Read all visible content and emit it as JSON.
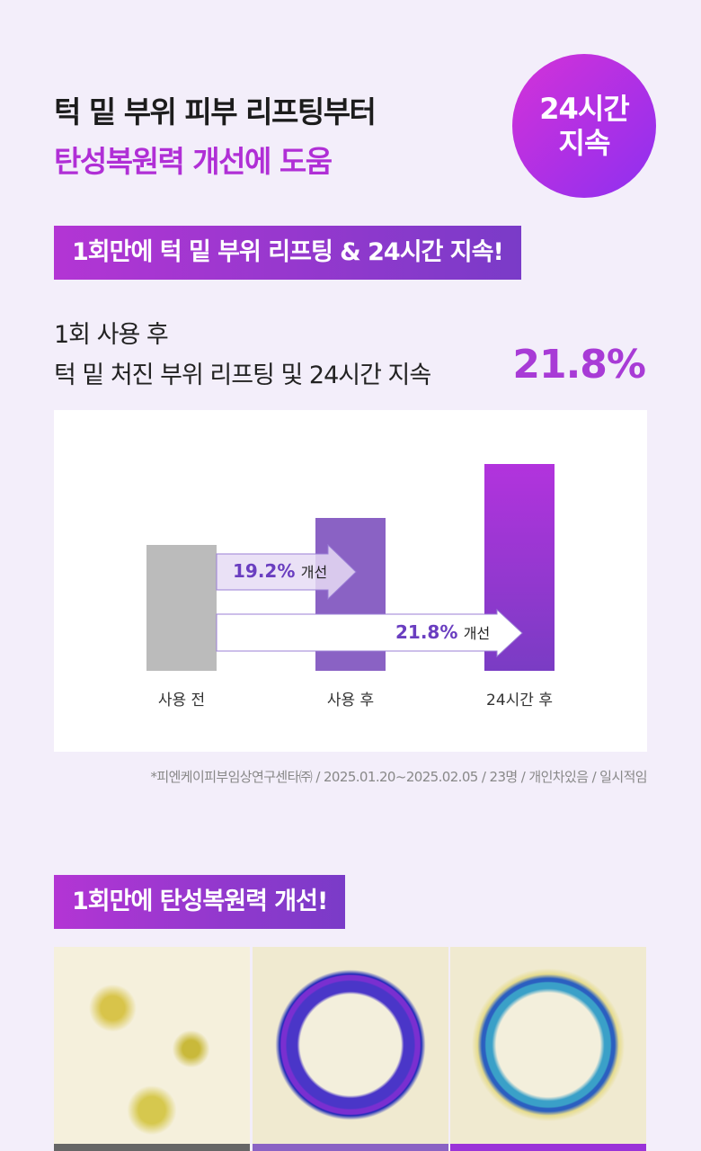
{
  "header": {
    "line1": "턱 밑 부위 피부 리프팅부터",
    "line2": "탄성복원력 개선에 도움",
    "badge_line1": "24시간",
    "badge_line2": "지속"
  },
  "section1": {
    "banner": "1회만에 턱 밑 부위 리프팅 & 24시간 지속!",
    "sub1": "1회 사용 후",
    "sub2": "턱 밑 처진 부위 리프팅 및 24시간 지속",
    "highlight": "21.8%"
  },
  "chart_data": {
    "type": "bar",
    "categories": [
      "사용 전",
      "사용 후",
      "24시간 후"
    ],
    "values": [
      1.0,
      1.214,
      1.643
    ],
    "value_note": "relative bar height, no axis shown",
    "annotations": [
      {
        "value": "19.2%",
        "label": "개선",
        "from": "사용 전",
        "to": "사용 후"
      },
      {
        "value": "21.8%",
        "label": "개선",
        "from": "사용 전",
        "to": "24시간 후"
      }
    ],
    "colors": [
      "#bbbbbb",
      "#8a62c4",
      "#a033d8"
    ]
  },
  "footnote": "*피엔케이피부임상연구센타㈜ / 2025.01.20~2025.02.05 / 23명 / 개인차있음 / 일시적임",
  "section2": {
    "banner": "1회만에 탄성복원력 개선!"
  }
}
